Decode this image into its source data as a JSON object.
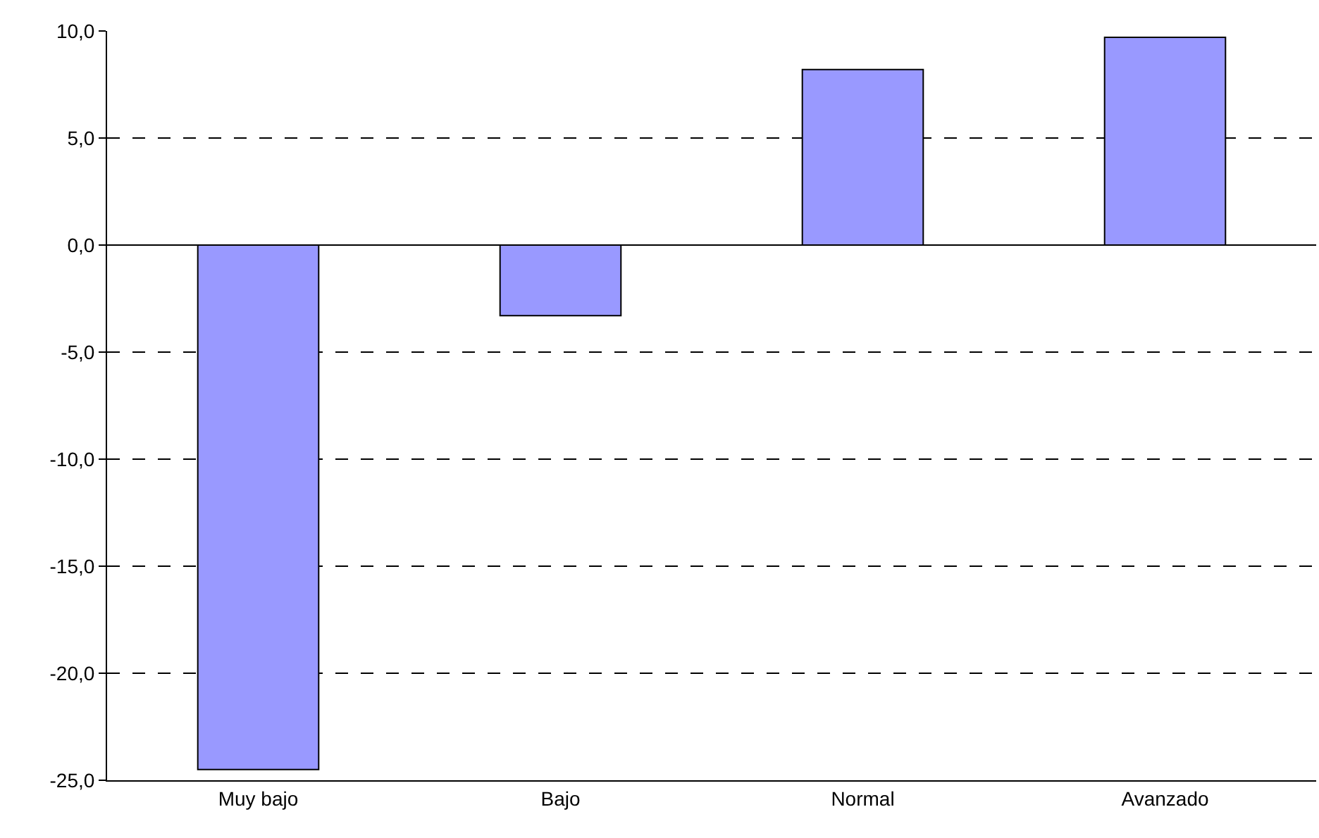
{
  "chart_data": {
    "type": "bar",
    "categories": [
      "Muy bajo",
      "Bajo",
      "Normal",
      "Avanzado"
    ],
    "values": [
      -24.5,
      -3.3,
      8.2,
      9.7
    ],
    "color": "#9999ff",
    "ylim": [
      -25,
      10
    ],
    "yticks": [
      {
        "value": -25,
        "label": "-25,0"
      },
      {
        "value": -20,
        "label": "-20,0"
      },
      {
        "value": -15,
        "label": "-15,0"
      },
      {
        "value": -10,
        "label": "-10,0"
      },
      {
        "value": -5,
        "label": "-5,0"
      },
      {
        "value": 0,
        "label": "0,0"
      },
      {
        "value": 5,
        "label": "5,0"
      },
      {
        "value": 10,
        "label": "10,0"
      }
    ],
    "grid": "y"
  }
}
